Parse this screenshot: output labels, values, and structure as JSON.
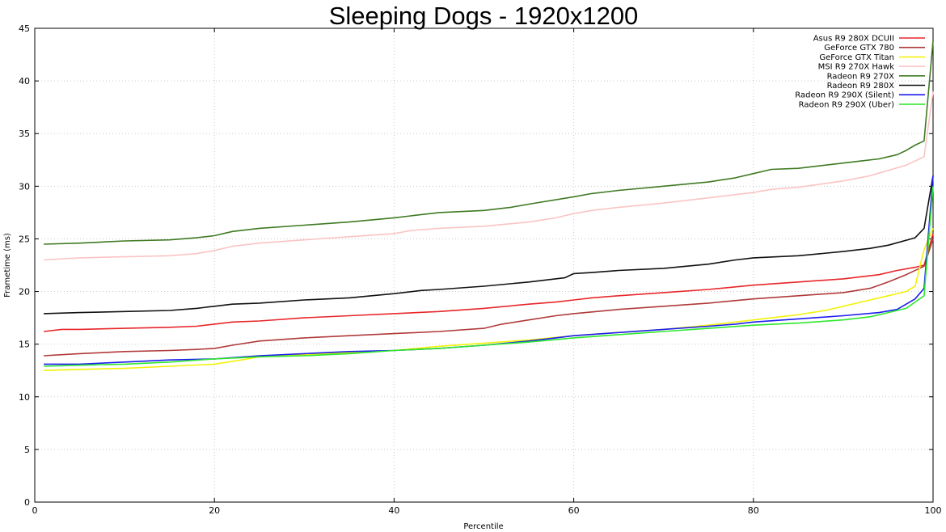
{
  "chart_data": {
    "type": "line",
    "title": "Sleeping Dogs - 1920x1200",
    "xlabel": "Percentile",
    "ylabel": "Frametime (ms)",
    "xlim": [
      0,
      100
    ],
    "ylim": [
      0,
      45
    ],
    "xticks": [
      0,
      20,
      40,
      60,
      80,
      100
    ],
    "yticks": [
      0,
      5,
      10,
      15,
      20,
      25,
      30,
      35,
      40,
      45
    ],
    "grid": true,
    "legend_position": "top-right",
    "series": [
      {
        "name": "Asus R9 280X DCUII",
        "color": "#e8262a",
        "x": [
          1,
          3,
          5,
          10,
          15,
          18,
          20,
          22,
          25,
          30,
          35,
          40,
          45,
          50,
          55,
          58,
          60,
          62,
          65,
          70,
          75,
          80,
          85,
          90,
          94,
          96,
          98,
          99,
          100
        ],
        "values": [
          16.2,
          16.4,
          16.4,
          16.5,
          16.6,
          16.7,
          16.9,
          17.1,
          17.2,
          17.5,
          17.7,
          17.9,
          18.1,
          18.4,
          18.8,
          19.0,
          19.2,
          19.4,
          19.6,
          19.9,
          20.2,
          20.6,
          20.9,
          21.2,
          21.6,
          22.0,
          22.3,
          22.5,
          25.5
        ]
      },
      {
        "name": "GeForce GTX 780",
        "color": "#b03a3a",
        "x": [
          1,
          3,
          5,
          10,
          15,
          18,
          20,
          22,
          25,
          30,
          35,
          40,
          45,
          50,
          52,
          55,
          58,
          60,
          65,
          70,
          75,
          80,
          85,
          90,
          93,
          95,
          97,
          99,
          100
        ],
        "values": [
          13.9,
          14.0,
          14.1,
          14.3,
          14.4,
          14.5,
          14.6,
          14.9,
          15.3,
          15.6,
          15.8,
          16.0,
          16.2,
          16.5,
          16.9,
          17.3,
          17.7,
          17.9,
          18.3,
          18.6,
          18.9,
          19.3,
          19.6,
          19.9,
          20.3,
          20.9,
          21.6,
          22.4,
          25.0
        ]
      },
      {
        "name": "GeForce GTX Titan",
        "color": "#f2f20a",
        "x": [
          1,
          5,
          10,
          15,
          20,
          23,
          25,
          30,
          35,
          40,
          45,
          50,
          55,
          60,
          65,
          70,
          75,
          80,
          85,
          88,
          90,
          93,
          95,
          97,
          98,
          99,
          100
        ],
        "values": [
          12.5,
          12.6,
          12.7,
          12.9,
          13.1,
          13.5,
          13.8,
          14.0,
          14.2,
          14.4,
          14.8,
          15.1,
          15.4,
          15.8,
          16.1,
          16.4,
          16.8,
          17.3,
          17.8,
          18.2,
          18.6,
          19.2,
          19.6,
          20.0,
          20.5,
          24.0,
          26.0
        ]
      },
      {
        "name": "MSI R9 270X Hawk",
        "color": "#fbc4c4",
        "x": [
          1,
          5,
          10,
          15,
          18,
          20,
          22,
          25,
          30,
          35,
          40,
          42,
          45,
          50,
          55,
          58,
          60,
          62,
          65,
          70,
          75,
          80,
          82,
          85,
          90,
          93,
          95,
          97,
          99,
          100
        ],
        "values": [
          23.0,
          23.2,
          23.3,
          23.4,
          23.6,
          23.9,
          24.3,
          24.6,
          24.9,
          25.2,
          25.5,
          25.8,
          26.0,
          26.2,
          26.6,
          27.0,
          27.4,
          27.7,
          28.0,
          28.4,
          28.9,
          29.4,
          29.7,
          29.9,
          30.5,
          31.0,
          31.5,
          32.0,
          32.8,
          39.0
        ]
      },
      {
        "name": "Radeon R9 270X",
        "color": "#3f7a22",
        "x": [
          1,
          5,
          10,
          15,
          18,
          20,
          22,
          25,
          30,
          35,
          40,
          45,
          50,
          53,
          55,
          60,
          62,
          65,
          70,
          75,
          78,
          80,
          82,
          85,
          90,
          92,
          94,
          96,
          97,
          98,
          99,
          100
        ],
        "values": [
          24.5,
          24.6,
          24.8,
          24.9,
          25.1,
          25.3,
          25.7,
          26.0,
          26.3,
          26.6,
          27.0,
          27.5,
          27.7,
          28.0,
          28.3,
          29.0,
          29.3,
          29.6,
          30.0,
          30.4,
          30.8,
          31.2,
          31.6,
          31.7,
          32.2,
          32.4,
          32.6,
          33.0,
          33.4,
          33.9,
          34.3,
          43.8
        ]
      },
      {
        "name": "Radeon R9 280X",
        "color": "#111111",
        "x": [
          1,
          5,
          10,
          15,
          18,
          20,
          22,
          25,
          30,
          35,
          40,
          43,
          45,
          50,
          55,
          59,
          60,
          62,
          65,
          70,
          75,
          78,
          80,
          85,
          90,
          93,
          95,
          98,
          99,
          100
        ],
        "values": [
          17.9,
          18.0,
          18.1,
          18.2,
          18.4,
          18.6,
          18.8,
          18.9,
          19.2,
          19.4,
          19.8,
          20.1,
          20.2,
          20.5,
          20.9,
          21.3,
          21.7,
          21.8,
          22.0,
          22.2,
          22.6,
          23.0,
          23.2,
          23.4,
          23.8,
          24.1,
          24.4,
          25.1,
          26.0,
          31.0
        ]
      },
      {
        "name": "Radeon R9 290X (Silent)",
        "color": "#1c1cf0",
        "x": [
          1,
          5,
          10,
          15,
          20,
          25,
          30,
          35,
          40,
          45,
          50,
          55,
          58,
          60,
          65,
          70,
          75,
          78,
          80,
          85,
          90,
          94,
          96,
          98,
          99,
          100
        ],
        "values": [
          13.1,
          13.1,
          13.3,
          13.5,
          13.6,
          13.9,
          14.1,
          14.3,
          14.4,
          14.6,
          14.9,
          15.3,
          15.6,
          15.8,
          16.1,
          16.4,
          16.7,
          16.9,
          17.1,
          17.4,
          17.7,
          18.0,
          18.3,
          19.3,
          20.3,
          31.0
        ]
      },
      {
        "name": "Radeon R9 290X (Uber)",
        "color": "#2ee82e",
        "x": [
          1,
          5,
          10,
          15,
          20,
          25,
          30,
          35,
          40,
          45,
          50,
          55,
          60,
          65,
          70,
          75,
          80,
          85,
          90,
          93,
          95,
          97,
          99,
          100
        ],
        "values": [
          12.9,
          13.0,
          13.1,
          13.3,
          13.6,
          13.8,
          13.9,
          14.1,
          14.4,
          14.6,
          14.9,
          15.2,
          15.6,
          15.9,
          16.2,
          16.5,
          16.8,
          17.0,
          17.3,
          17.6,
          18.0,
          18.4,
          19.6,
          30.0
        ]
      }
    ]
  }
}
